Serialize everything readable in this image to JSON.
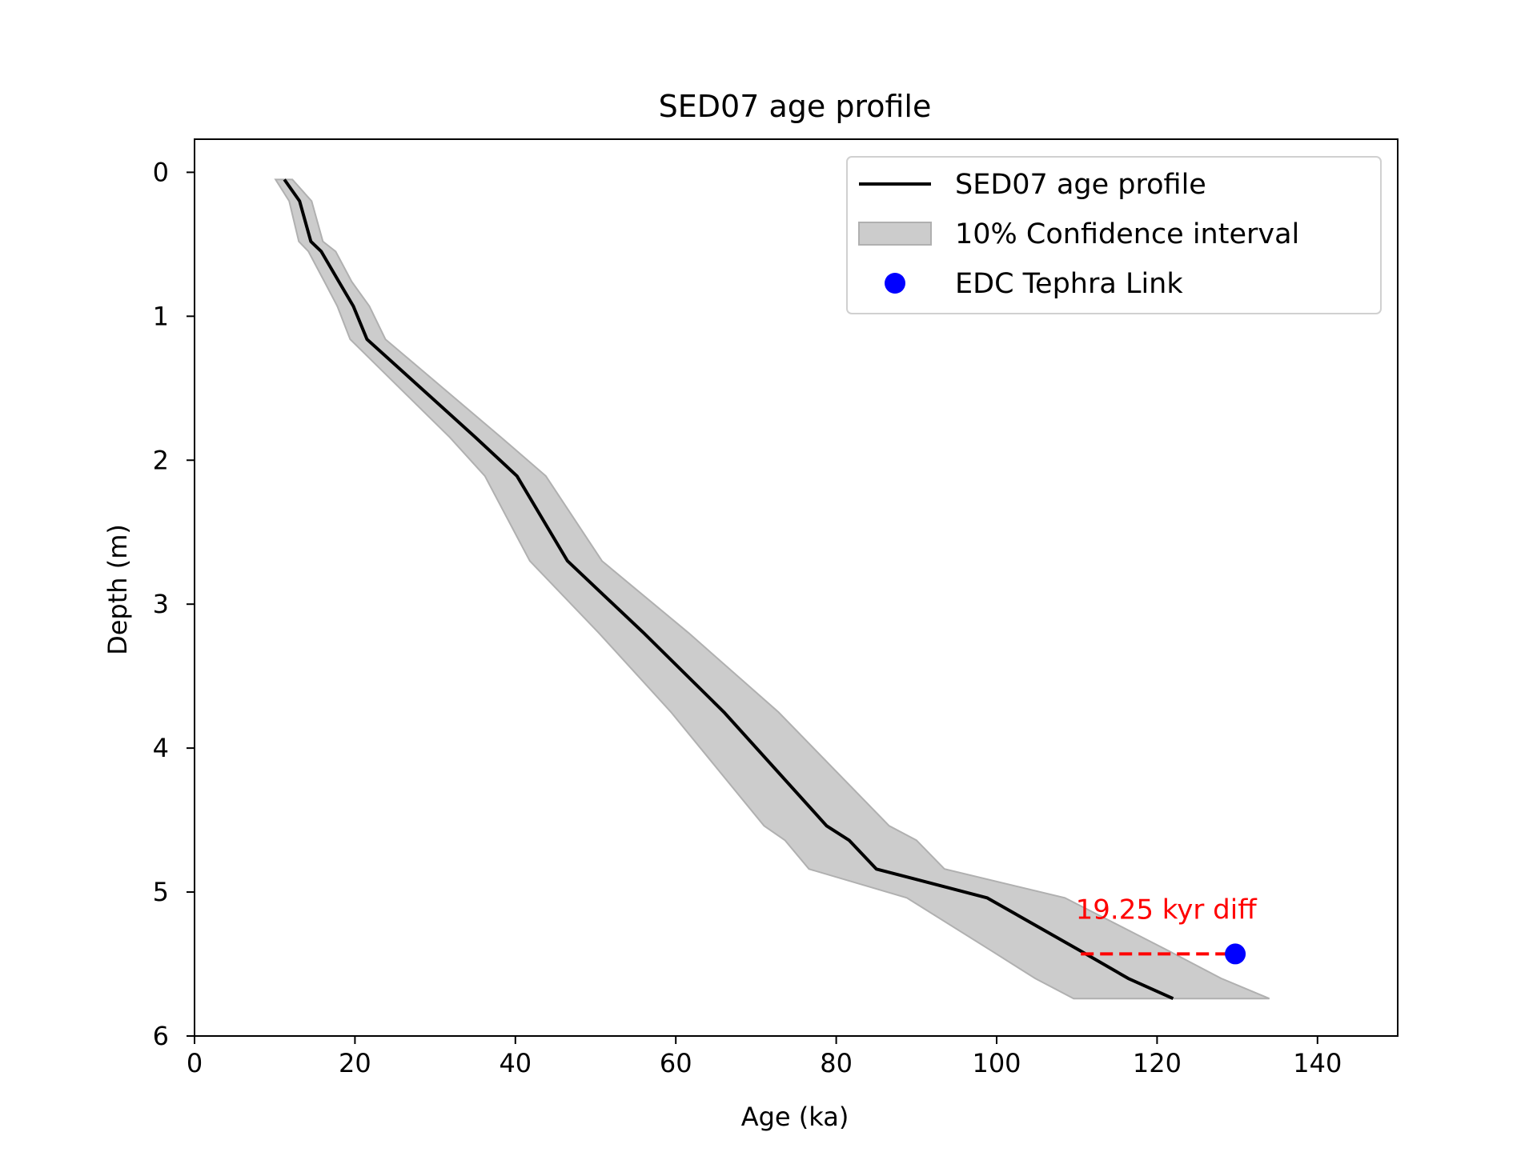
{
  "chart_data": {
    "type": "line",
    "title": "SED07 age profile",
    "xlabel": "Age (ka)",
    "ylabel": "Depth (m)",
    "xlim": [
      0,
      150
    ],
    "ylim": [
      6.0,
      -0.23
    ],
    "y_inverted": true,
    "xticks": [
      0,
      20,
      40,
      60,
      80,
      100,
      120,
      140
    ],
    "yticks": [
      0,
      1,
      2,
      3,
      4,
      5,
      6
    ],
    "grid": false,
    "legend_position": "top-right",
    "series": [
      {
        "name": "SED07 age profile",
        "kind": "line",
        "color": "#000000",
        "points": [
          [
            11.2,
            0.05
          ],
          [
            13.1,
            0.2
          ],
          [
            14.5,
            0.48
          ],
          [
            15.8,
            0.55
          ],
          [
            18.0,
            0.76
          ],
          [
            19.8,
            0.93
          ],
          [
            21.5,
            1.16
          ],
          [
            35.0,
            1.84
          ],
          [
            40.2,
            2.11
          ],
          [
            46.5,
            2.7
          ],
          [
            56.0,
            3.2
          ],
          [
            66.0,
            3.75
          ],
          [
            78.8,
            4.54
          ],
          [
            81.6,
            4.64
          ],
          [
            85.0,
            4.84
          ],
          [
            98.8,
            5.04
          ],
          [
            110.5,
            5.41
          ],
          [
            116.4,
            5.6
          ],
          [
            122.0,
            5.74
          ]
        ]
      },
      {
        "name": "10% Confidence interval",
        "kind": "band",
        "color": "#cccccc",
        "upper": [
          [
            12.2,
            0.05
          ],
          [
            14.6,
            0.2
          ],
          [
            16.0,
            0.48
          ],
          [
            17.6,
            0.55
          ],
          [
            19.6,
            0.76
          ],
          [
            21.8,
            0.93
          ],
          [
            23.8,
            1.16
          ],
          [
            38.2,
            1.84
          ],
          [
            43.8,
            2.11
          ],
          [
            50.8,
            2.7
          ],
          [
            61.6,
            3.2
          ],
          [
            72.8,
            3.75
          ],
          [
            86.6,
            4.54
          ],
          [
            90.0,
            4.64
          ],
          [
            93.5,
            4.84
          ],
          [
            108.5,
            5.04
          ],
          [
            121.5,
            5.41
          ],
          [
            128.0,
            5.6
          ],
          [
            134.0,
            5.74
          ]
        ],
        "lower": [
          [
            10.1,
            0.05
          ],
          [
            11.8,
            0.2
          ],
          [
            13.0,
            0.48
          ],
          [
            14.2,
            0.55
          ],
          [
            16.2,
            0.76
          ],
          [
            17.8,
            0.93
          ],
          [
            19.4,
            1.16
          ],
          [
            31.8,
            1.84
          ],
          [
            36.2,
            2.11
          ],
          [
            41.8,
            2.7
          ],
          [
            50.4,
            3.2
          ],
          [
            59.4,
            3.75
          ],
          [
            71.0,
            4.54
          ],
          [
            73.6,
            4.64
          ],
          [
            76.6,
            4.84
          ],
          [
            88.8,
            5.04
          ],
          [
            99.4,
            5.41
          ],
          [
            104.8,
            5.6
          ],
          [
            109.6,
            5.74
          ]
        ]
      },
      {
        "name": "EDC Tephra Link",
        "kind": "scatter",
        "color": "#0000ff",
        "points": [
          [
            129.75,
            5.43
          ]
        ]
      }
    ],
    "annotations": [
      {
        "text": "19.25 kyr diff",
        "color": "#ff0000",
        "line_from": [
          110.5,
          5.43
        ],
        "line_to": [
          129.75,
          5.43
        ],
        "line_style": "dashed"
      }
    ]
  }
}
